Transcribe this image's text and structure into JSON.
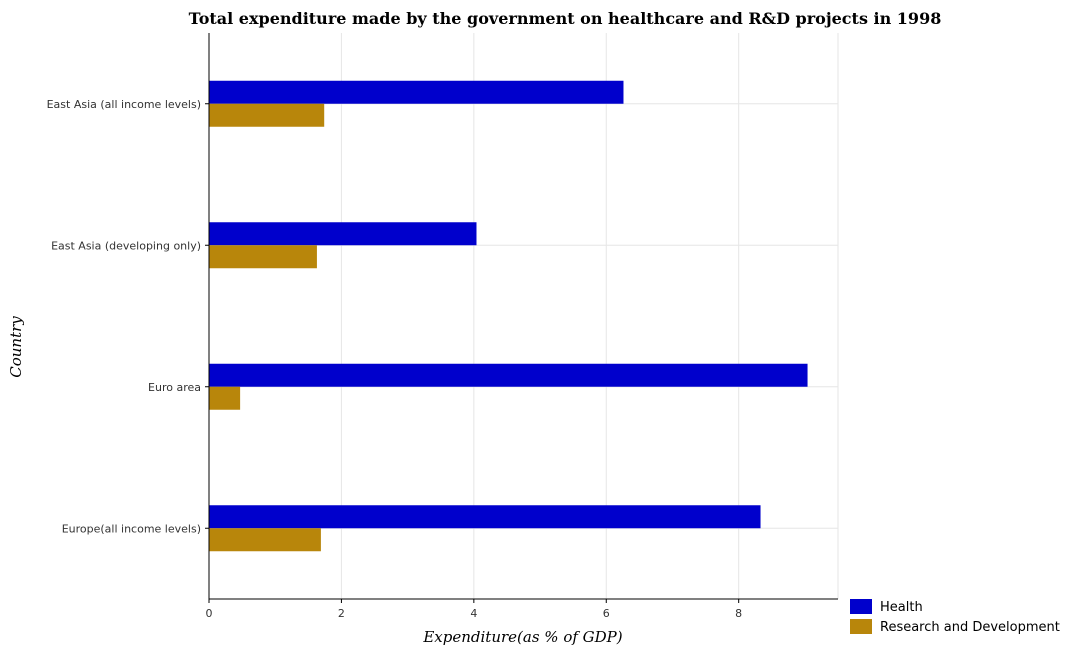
{
  "chart_data": {
    "type": "bar",
    "orientation": "horizontal",
    "title": "Total expenditure made by the government on healthcare and R&D projects in 1998",
    "xlabel": "Expenditure(as % of GDP)",
    "ylabel": "Country",
    "categories": [
      "East Asia (all income levels)",
      "East Asia (developing only)",
      "Euro area",
      "Europe(all income levels)"
    ],
    "series": [
      {
        "name": "Health",
        "color": "#0000cc",
        "values": [
          6.26,
          4.04,
          9.04,
          8.33
        ]
      },
      {
        "name": "Research and Development",
        "color": "#b8860b",
        "values": [
          1.74,
          1.63,
          0.47,
          1.69
        ]
      }
    ],
    "xlim": [
      0,
      9.5
    ],
    "xticks": [
      0,
      2,
      4,
      6,
      8
    ],
    "xtick_labels": [
      "0",
      "2",
      "4",
      "6",
      "8"
    ],
    "grid": true,
    "legend_position": "bottom-right"
  }
}
